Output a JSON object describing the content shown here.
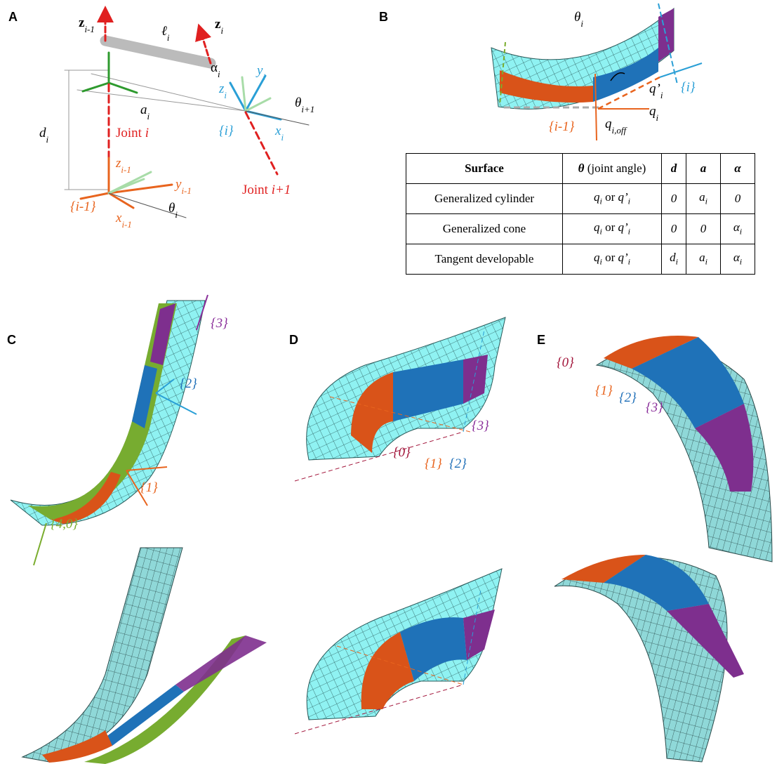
{
  "panel_labels": [
    "A",
    "B",
    "C",
    "D",
    "E"
  ],
  "panel_a": [
    [
      {
        "b": "z"
      },
      {
        "s": "i-1"
      }
    ],
    [
      {
        "i": "ℓ"
      },
      {
        "s": "i"
      }
    ],
    [
      {
        "b": "z"
      },
      {
        "s": "i"
      }
    ],
    [
      {
        "t": "α"
      },
      {
        "s": "i"
      }
    ],
    [
      {
        "i": "y"
      },
      {
        "s": "i"
      }
    ],
    [
      {
        "i": "z"
      },
      {
        "s": "i"
      }
    ],
    [
      {
        "i": "a"
      },
      {
        "s": "i"
      }
    ],
    [
      {
        "i": "θ"
      },
      {
        "s": "i+1"
      }
    ],
    [
      {
        "i": "d"
      },
      {
        "s": "i"
      }
    ],
    [
      {
        "t": "Joint "
      },
      {
        "i": "i"
      }
    ],
    [
      {
        "i": "{i}"
      }
    ],
    [
      {
        "i": "x"
      },
      {
        "s": "i"
      }
    ],
    [
      {
        "t": "Joint "
      },
      {
        "i": "i+1"
      }
    ],
    [
      {
        "i": "z"
      },
      {
        "s": "i-1"
      }
    ],
    [
      {
        "i": "y"
      },
      {
        "s": "i-1"
      }
    ],
    [
      {
        "i": "{i-1}"
      }
    ],
    [
      {
        "i": "x"
      },
      {
        "s": "i-1"
      }
    ],
    [
      {
        "i": "θ"
      },
      {
        "s": "i"
      }
    ]
  ],
  "panel_b": [
    [
      {
        "i": "θ"
      },
      {
        "s": "i"
      }
    ],
    [
      {
        "i": "{i}"
      }
    ],
    [
      {
        "i": "q’"
      },
      {
        "s": "i"
      }
    ],
    [
      {
        "i": "q"
      },
      {
        "s": "i"
      }
    ],
    [
      {
        "i": "q"
      },
      {
        "s": "i,off"
      }
    ],
    [
      {
        "i": "{i-1}"
      }
    ]
  ],
  "table": {
    "header": [
      [
        {
          "b": "Surface"
        }
      ],
      [
        {
          "bi": "θ"
        },
        {
          "t": " (joint angle)"
        }
      ],
      [
        {
          "bi": "d"
        }
      ],
      [
        {
          "bi": "a"
        }
      ],
      [
        {
          "bi": "α"
        }
      ]
    ],
    "rows": [
      [
        [
          {
            "t": "Generalized cylinder"
          }
        ],
        [
          {
            "i": "q"
          },
          {
            "s": "i"
          },
          {
            "t": " or "
          },
          {
            "i": "q’"
          },
          {
            "s": "i"
          }
        ],
        [
          {
            "i": "0"
          }
        ],
        [
          {
            "i": "a"
          },
          {
            "s": "i"
          }
        ],
        [
          {
            "i": "0"
          }
        ]
      ],
      [
        [
          {
            "t": "Generalized cone"
          }
        ],
        [
          {
            "i": "q"
          },
          {
            "s": "i"
          },
          {
            "t": " or "
          },
          {
            "i": "q’"
          },
          {
            "s": "i"
          }
        ],
        [
          {
            "i": "0"
          }
        ],
        [
          {
            "i": "0"
          }
        ],
        [
          {
            "i": "α"
          },
          {
            "s": "i"
          }
        ]
      ],
      [
        [
          {
            "t": "Tangent developable"
          }
        ],
        [
          {
            "i": "q"
          },
          {
            "s": "i"
          },
          {
            "t": " or "
          },
          {
            "i": "q’"
          },
          {
            "s": "i"
          }
        ],
        [
          {
            "i": "d"
          },
          {
            "s": "i"
          }
        ],
        [
          {
            "i": "a"
          },
          {
            "s": "i"
          }
        ],
        [
          {
            "i": "α"
          },
          {
            "s": "i"
          }
        ]
      ]
    ]
  },
  "panel_c": [
    "{3}",
    "{2}",
    "{1}",
    "{4,0}"
  ],
  "panel_d": [
    "{3}",
    "{0}",
    "{1}",
    "{2}"
  ],
  "panel_e": [
    "{0}",
    "{1}",
    "{2}",
    "{3}"
  ]
}
